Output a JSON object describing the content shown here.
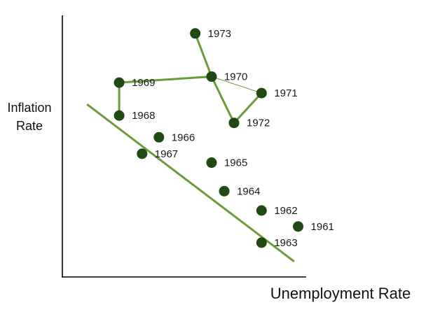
{
  "chart_data": {
    "type": "scatter",
    "title": "",
    "xlabel": "Unemployment Rate",
    "ylabel_lines": [
      "Inflation",
      "Rate"
    ],
    "axis_ticks": "none",
    "grid": false,
    "legend": "none",
    "points": [
      {
        "label": "1961",
        "x": 0.967,
        "y": 0.193
      },
      {
        "label": "1962",
        "x": 0.817,
        "y": 0.254
      },
      {
        "label": "1963",
        "x": 0.817,
        "y": 0.131
      },
      {
        "label": "1964",
        "x": 0.664,
        "y": 0.328
      },
      {
        "label": "1965",
        "x": 0.612,
        "y": 0.437
      },
      {
        "label": "1966",
        "x": 0.396,
        "y": 0.534
      },
      {
        "label": "1967",
        "x": 0.327,
        "y": 0.471
      },
      {
        "label": "1968",
        "x": 0.233,
        "y": 0.617
      },
      {
        "label": "1969",
        "x": 0.233,
        "y": 0.743
      },
      {
        "label": "1970",
        "x": 0.612,
        "y": 0.766
      },
      {
        "label": "1971",
        "x": 0.817,
        "y": 0.703
      },
      {
        "label": "1972",
        "x": 0.704,
        "y": 0.589
      },
      {
        "label": "1973",
        "x": 0.545,
        "y": 0.931
      }
    ],
    "path_sequence": [
      "1968",
      "1969",
      "1970",
      "1972",
      "1971"
    ],
    "thin_connector": [
      "1970",
      "1971"
    ],
    "extra_segment": [
      "1973",
      "1970"
    ],
    "trend_line": {
      "x": [
        0.104,
        0.948
      ],
      "y": [
        0.658,
        0.061
      ]
    },
    "xlim": [
      0,
      1
    ],
    "ylim": [
      0,
      1
    ],
    "colors": {
      "point": "#1f4a11",
      "line": "#6d9b3b",
      "axis": "#000000"
    }
  }
}
